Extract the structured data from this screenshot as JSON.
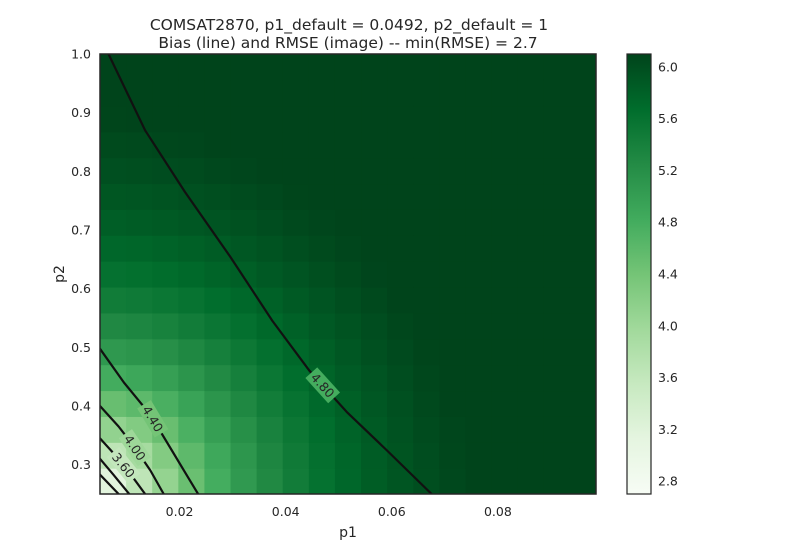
{
  "chart_data": {
    "type": "heatmap",
    "title": "COMSAT2870, p1_default = 0.0492, p2_default = 1",
    "subtitle": "Bias (line) and RMSE (image) -- min(RMSE) = 2.7",
    "xlabel": "p1",
    "ylabel": "p2",
    "xlim": [
      0.005,
      0.0985
    ],
    "ylim": [
      0.25,
      1.0
    ],
    "x_ticks": [
      0.02,
      0.04,
      0.06,
      0.08
    ],
    "x_tick_labels": [
      "0.02",
      "0.04",
      "0.06",
      "0.08"
    ],
    "y_ticks": [
      0.3,
      0.4,
      0.5,
      0.6,
      0.7,
      0.8,
      0.9,
      1.0
    ],
    "y_tick_labels": [
      "0.3",
      "0.4",
      "0.5",
      "0.6",
      "0.7",
      "0.8",
      "0.9",
      "1.0"
    ],
    "grid": false,
    "grid_shape": {
      "nx": 19,
      "ny": 17
    },
    "colormap": {
      "name": "Greens",
      "low": "#f7fcf5",
      "high": "#00441b"
    },
    "colorbar": {
      "range": [
        2.7,
        6.1
      ],
      "ticks": [
        2.8,
        3.2,
        3.6,
        4.0,
        4.4,
        4.8,
        5.2,
        5.6,
        6.0
      ],
      "tick_labels": [
        "2.8",
        "3.2",
        "3.6",
        "4.0",
        "4.4",
        "4.8",
        "5.2",
        "5.6",
        "6.0"
      ]
    },
    "contours": [
      {
        "level": 4.8,
        "label": "4.80",
        "points": [
          [
            0.0066,
            1.0
          ],
          [
            0.0135,
            0.87
          ],
          [
            0.021,
            0.765
          ],
          [
            0.0295,
            0.655
          ],
          [
            0.0375,
            0.545
          ],
          [
            0.0445,
            0.46
          ],
          [
            0.0515,
            0.39
          ],
          [
            0.059,
            0.325
          ],
          [
            0.0675,
            0.25
          ]
        ]
      },
      {
        "level": 4.4,
        "label": "4.40",
        "points": [
          [
            0.005,
            0.4975
          ],
          [
            0.0095,
            0.44
          ],
          [
            0.0145,
            0.385
          ],
          [
            0.0185,
            0.325
          ],
          [
            0.0215,
            0.28
          ],
          [
            0.0235,
            0.25
          ]
        ]
      },
      {
        "level": 4.0,
        "label": "4.00",
        "points": [
          [
            0.005,
            0.4
          ],
          [
            0.0085,
            0.365
          ],
          [
            0.0115,
            0.33
          ],
          [
            0.0145,
            0.29
          ],
          [
            0.017,
            0.25
          ]
        ]
      },
      {
        "level": 3.6,
        "label": "3.60",
        "points": [
          [
            0.005,
            0.345
          ],
          [
            0.008,
            0.315
          ],
          [
            0.0105,
            0.287
          ],
          [
            0.0135,
            0.25
          ]
        ]
      },
      {
        "level": 3.2,
        "label": "",
        "points": [
          [
            0.005,
            0.31
          ],
          [
            0.0075,
            0.283
          ],
          [
            0.0105,
            0.25
          ]
        ]
      },
      {
        "level": 2.8,
        "label": "",
        "points": [
          [
            0.005,
            0.283
          ],
          [
            0.0085,
            0.25
          ]
        ]
      }
    ]
  }
}
